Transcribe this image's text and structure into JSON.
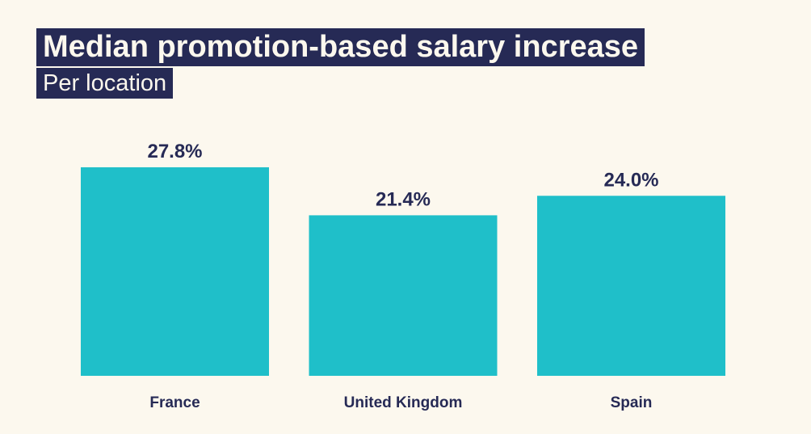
{
  "chart_data": {
    "type": "bar",
    "title": "Median promotion-based salary increase",
    "subtitle": "Per location",
    "categories": [
      "France",
      "United Kingdom",
      "Spain"
    ],
    "values": [
      27.8,
      21.4,
      24.0
    ],
    "value_labels": [
      "27.8%",
      "21.4%",
      "24.0%"
    ],
    "ylim": [
      0,
      27.8
    ],
    "grid": false,
    "xlabel": "",
    "ylabel": "",
    "colors": {
      "bar": "#1fbfc9",
      "text": "#262a55",
      "background": "#fcf8ee"
    }
  }
}
